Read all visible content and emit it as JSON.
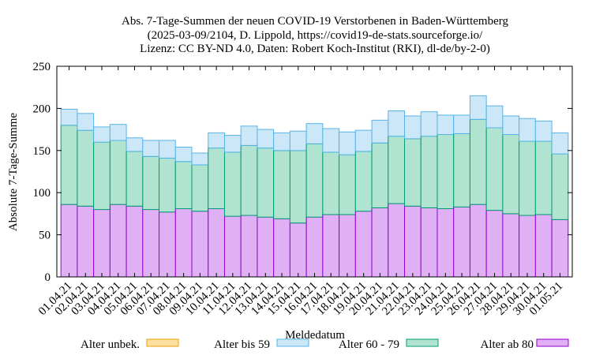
{
  "chart_data": {
    "type": "bar",
    "stacked": true,
    "title": [
      "Abs. 7-Tage-Summen der neuen COVID-19 Verstorbenen in Baden-Württemberg",
      "(2025-03-09/2104, D. Lippold, https://covid19-de-stats.sourceforge.io/",
      "Lizenz: CC BY-ND 4.0, Daten: Robert Koch-Institut (RKI), dl-de/by-2-0)"
    ],
    "xlabel": "Meldedatum",
    "ylabel": "Absolute 7-Tage-Summe",
    "ylim": [
      0,
      250
    ],
    "yticks": [
      0,
      50,
      100,
      150,
      200,
      250
    ],
    "legend_position": "bottom",
    "categories": [
      "01.04.21",
      "02.04.21",
      "03.04.21",
      "04.04.21",
      "05.04.21",
      "06.04.21",
      "07.04.21",
      "08.04.21",
      "09.04.21",
      "10.04.21",
      "11.04.21",
      "12.04.21",
      "13.04.21",
      "14.04.21",
      "15.04.21",
      "16.04.21",
      "17.04.21",
      "18.04.21",
      "19.04.21",
      "20.04.21",
      "21.04.21",
      "22.04.21",
      "23.04.21",
      "24.04.21",
      "25.04.21",
      "26.04.21",
      "27.04.21",
      "28.04.21",
      "29.04.21",
      "30.04.21",
      "01.05.21"
    ],
    "series": [
      {
        "name": "Alter unbek.",
        "fill": "#fde0a0",
        "stroke": "#e8a000",
        "values": [
          0,
          0,
          0,
          0,
          0,
          0,
          0,
          0,
          0,
          0,
          0,
          0,
          0,
          0,
          0,
          0,
          0,
          0,
          0,
          0,
          0,
          0,
          0,
          0,
          0,
          0,
          0,
          0,
          0,
          0,
          0
        ]
      },
      {
        "name": "Alter bis 59",
        "fill": "#cce8f8",
        "stroke": "#56b4e9",
        "values": [
          19,
          20,
          18,
          19,
          16,
          19,
          21,
          17,
          14,
          18,
          20,
          23,
          22,
          21,
          23,
          24,
          28,
          27,
          25,
          27,
          30,
          27,
          29,
          23,
          22,
          28,
          26,
          22,
          27,
          24,
          25
        ]
      },
      {
        "name": "Alter 60 - 79",
        "fill": "#b0e4d0",
        "stroke": "#009e73",
        "values": [
          94,
          90,
          80,
          76,
          65,
          63,
          64,
          56,
          55,
          72,
          76,
          83,
          82,
          81,
          86,
          87,
          74,
          71,
          71,
          77,
          80,
          80,
          85,
          88,
          87,
          101,
          98,
          94,
          88,
          87,
          78
        ]
      },
      {
        "name": "Alter ab 80",
        "fill": "#e0b0f4",
        "stroke": "#9400d3",
        "values": [
          86,
          84,
          80,
          86,
          84,
          80,
          77,
          81,
          78,
          81,
          72,
          73,
          71,
          69,
          64,
          71,
          74,
          74,
          78,
          82,
          87,
          84,
          82,
          81,
          83,
          86,
          79,
          75,
          73,
          74,
          68
        ]
      }
    ]
  }
}
